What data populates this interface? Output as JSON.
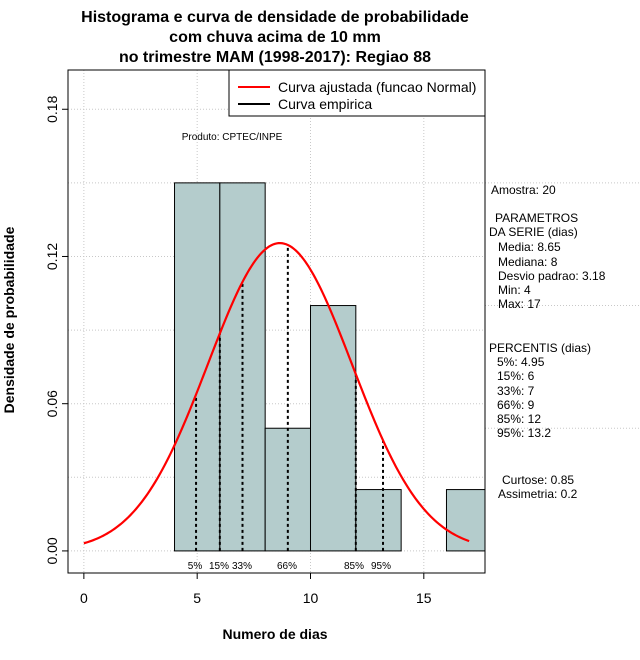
{
  "chart_data": {
    "type": "bar",
    "title": [
      "Histograma e curva de densidade de probabilidade",
      "com chuva acima de 10 mm",
      "no trimestre MAM (1998-2017): Regiao 88"
    ],
    "xlabel": "Numero de dias",
    "ylabel": "Densidade de probabilidade",
    "xlim": [
      -0.7,
      17.7
    ],
    "ylim": [
      -0.009,
      0.196
    ],
    "x_ticks": [
      0,
      5,
      10,
      15
    ],
    "y_ticks": [
      0.0,
      0.06,
      0.12,
      0.18
    ],
    "y_tick_labels": [
      "0.00",
      "0.06",
      "0.12",
      "0.18"
    ],
    "grid": true,
    "bins": [
      {
        "from": 4,
        "to": 6,
        "density": 0.15
      },
      {
        "from": 6,
        "to": 8,
        "density": 0.15
      },
      {
        "from": 8,
        "to": 10,
        "density": 0.05
      },
      {
        "from": 10,
        "to": 12,
        "density": 0.1
      },
      {
        "from": 12,
        "to": 14,
        "density": 0.025
      },
      {
        "from": 14,
        "to": 16,
        "density": 0.0
      },
      {
        "from": 16,
        "to": 18,
        "density": 0.025
      }
    ],
    "bar_color": "#b4cccc",
    "series": [
      {
        "name": "Curva ajustada (funcao Normal)",
        "color": "#ff0000",
        "distribution": "normal",
        "mean": 8.65,
        "sd": 3.18,
        "x_range": [
          0,
          17
        ]
      },
      {
        "name": "Curva empirica",
        "color": "#000000"
      }
    ],
    "legend_position": "top-right",
    "percentiles": [
      {
        "label": "5%",
        "value": 4.95
      },
      {
        "label": "15%",
        "value": 6
      },
      {
        "label": "33%",
        "value": 7
      },
      {
        "label": "66%",
        "value": 9
      },
      {
        "label": "85%",
        "value": 12
      },
      {
        "label": "95%",
        "value": 13.2
      }
    ],
    "annotation": "Produto: CPTEC/INPE"
  },
  "stats": {
    "amostra": "Amostra: 20",
    "parametros_title": "PARAMETROS",
    "serie_title": "DA SERIE (dias)",
    "media": "Media: 8.65",
    "mediana": "Mediana: 8",
    "desvio": "Desvio padrao: 3.18",
    "min": "Min: 4",
    "max": "Max: 17",
    "percentis_title": "PERCENTIS (dias)",
    "p5": "5%: 4.95",
    "p15": "15%: 6",
    "p33": "33%: 7",
    "p66": "66%: 9",
    "p85": "85%: 12",
    "p95": "95%: 13.2",
    "curtose": "Curtose: 0.85",
    "assimetria": "Assimetria: 0.2"
  }
}
